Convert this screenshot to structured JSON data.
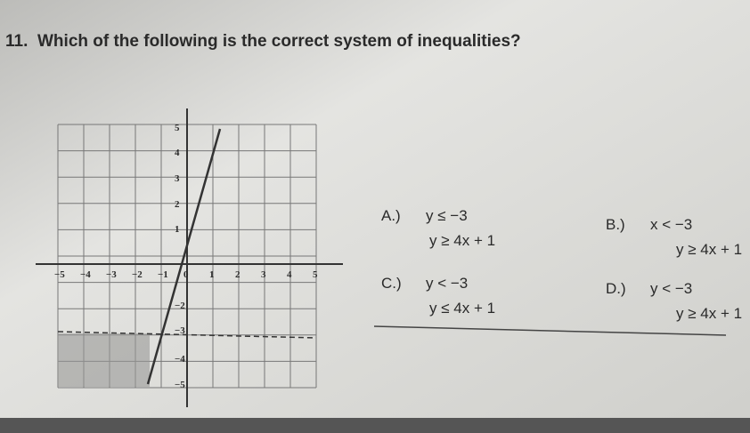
{
  "question": {
    "number": "11.",
    "text": "Which of the following is the correct system of inequalities?"
  },
  "graph": {
    "x_labels": [
      "−5",
      "−4",
      "−3",
      "−2",
      "−1",
      "0",
      "1",
      "2",
      "3",
      "4",
      "5"
    ],
    "y_labels": [
      "5",
      "4",
      "3",
      "2",
      "1",
      "−2",
      "−3",
      "−4",
      "−5"
    ]
  },
  "options": [
    {
      "letter": "A.)",
      "lines": [
        "y ≤ −3",
        "y ≥ 4x + 1"
      ]
    },
    {
      "letter": "B.)",
      "lines": [
        "x < −3",
        "y ≥ 4x + 1"
      ]
    },
    {
      "letter": "C.)",
      "lines": [
        "y < −3",
        "y ≤ 4x + 1"
      ]
    },
    {
      "letter": "D.)",
      "lines": [
        "y < −3",
        "y ≥ 4x + 1"
      ]
    }
  ]
}
